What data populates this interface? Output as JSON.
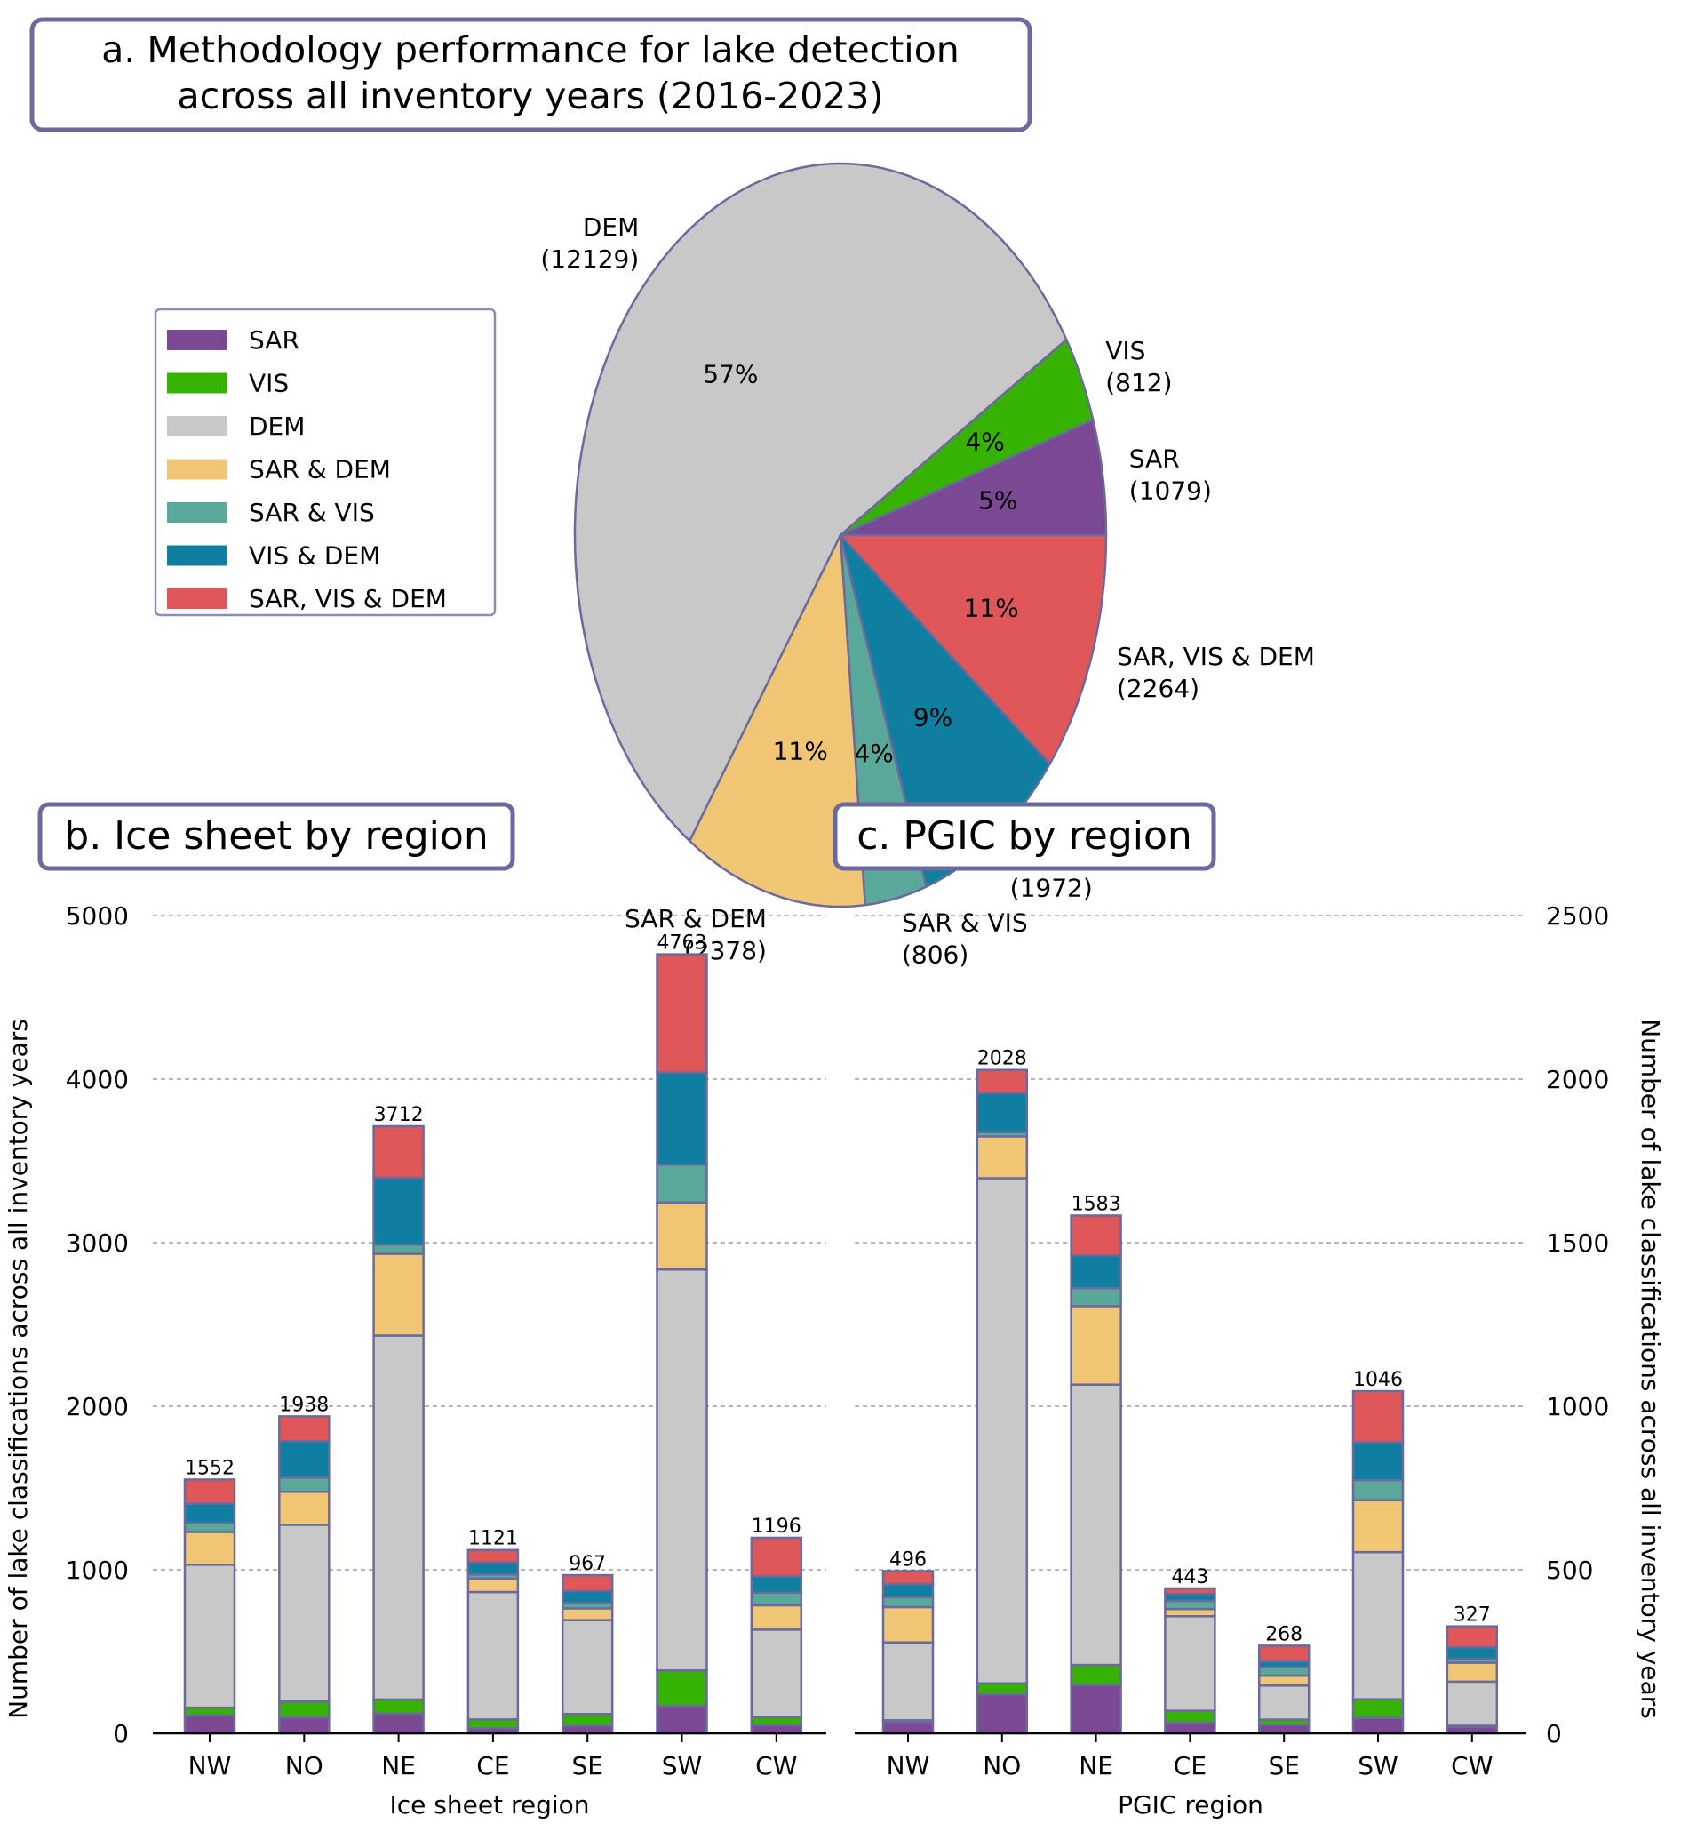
{
  "colors": {
    "SAR": "#7b4894",
    "VIS": "#36b300",
    "DEM": "#c8c8c8",
    "SAR & DEM": "#f0c674",
    "SAR & VIS": "#5aa89a",
    "VIS & DEM": "#0f7fa1",
    "SAR, VIS & DEM": "#e05759",
    "edge": "#6a6a9e",
    "grid": "#8a8a8a"
  },
  "legend": {
    "items": [
      "SAR",
      "VIS",
      "DEM",
      "SAR & DEM",
      "SAR & VIS",
      "VIS & DEM",
      "SAR, VIS & DEM"
    ]
  },
  "chart_data": [
    {
      "type": "pie",
      "title": "a. Methodology performance for lake detection across all inventory years (2016-2023)",
      "title_lines": [
        "a. Methodology performance for lake detection",
        "across all inventory years (2016-2023)"
      ],
      "labels": [
        "SAR",
        "VIS",
        "DEM",
        "SAR & DEM",
        "SAR & VIS",
        "VIS & DEM",
        "SAR, VIS & DEM"
      ],
      "values": [
        1079,
        812,
        12129,
        2378,
        806,
        1972,
        2264
      ],
      "count_labels": [
        "(1079)",
        "(812)",
        "(12129)",
        "(2378)",
        "(806)",
        "(1972)",
        "(2264)"
      ],
      "percent_labels": [
        "5%",
        "4%",
        "57%",
        "11%",
        "4%",
        "9%",
        "11%"
      ],
      "start_angle_deg": 0,
      "direction": "counterclockwise",
      "legend_placement": "left"
    },
    {
      "type": "bar",
      "stacked": true,
      "title": "b. Ice sheet by region",
      "xlabel": "Ice sheet region",
      "ylabel": "Number of lake classifications across all inventory years",
      "yaxis_side": "left",
      "ylim": [
        0,
        5000
      ],
      "yticks": [
        0,
        1000,
        2000,
        3000,
        4000,
        5000
      ],
      "grid": "horizontal dashed",
      "categories": [
        "NW",
        "NO",
        "NE",
        "CE",
        "SE",
        "SW",
        "CW"
      ],
      "totals": [
        1552,
        1938,
        3712,
        1121,
        967,
        4763,
        1196
      ],
      "series": [
        {
          "name": "SAR",
          "values": [
            110,
            97,
            121,
            31,
            45,
            168,
            49
          ]
        },
        {
          "name": "VIS",
          "values": [
            47,
            97,
            86,
            54,
            73,
            216,
            51
          ]
        },
        {
          "name": "DEM",
          "values": [
            874,
            1081,
            2225,
            779,
            574,
            2452,
            534
          ]
        },
        {
          "name": "SAR & DEM",
          "values": [
            200,
            202,
            500,
            82,
            72,
            409,
            149
          ]
        },
        {
          "name": "SAR & VIS",
          "values": [
            54,
            87,
            56,
            25,
            33,
            232,
            78
          ]
        },
        {
          "name": "VIS & DEM",
          "values": [
            120,
            223,
            408,
            74,
            73,
            563,
            99
          ]
        },
        {
          "name": "SAR, VIS & DEM",
          "values": [
            147,
            151,
            316,
            76,
            97,
            723,
            236
          ]
        }
      ]
    },
    {
      "type": "bar",
      "stacked": true,
      "title": "c. PGIC by region",
      "xlabel": "PGIC region",
      "ylabel": "Number of lake classifications across all inventory years",
      "yaxis_side": "right",
      "ylim": [
        0,
        2500
      ],
      "yticks": [
        0,
        500,
        1000,
        1500,
        2000,
        2500
      ],
      "grid": "horizontal dashed",
      "categories": [
        "NW",
        "NO",
        "NE",
        "CE",
        "SE",
        "SW",
        "CW"
      ],
      "totals": [
        496,
        2028,
        1583,
        443,
        268,
        1046,
        327
      ],
      "series": [
        {
          "name": "SAR",
          "values": [
            35,
            119,
            148,
            33,
            26,
            47,
            20
          ]
        },
        {
          "name": "VIS",
          "values": [
            5,
            34,
            61,
            36,
            16,
            57,
            3
          ]
        },
        {
          "name": "DEM",
          "values": [
            238,
            1544,
            857,
            289,
            104,
            450,
            135
          ]
        },
        {
          "name": "SAR & DEM",
          "values": [
            108,
            128,
            240,
            22,
            30,
            159,
            58
          ]
        },
        {
          "name": "SAR & VIS",
          "values": [
            31,
            13,
            55,
            25,
            26,
            61,
            12
          ]
        },
        {
          "name": "VIS & DEM",
          "values": [
            39,
            119,
            100,
            21,
            18,
            116,
            35
          ]
        },
        {
          "name": "SAR, VIS & DEM",
          "values": [
            40,
            71,
            122,
            17,
            48,
            156,
            64
          ]
        }
      ]
    }
  ]
}
